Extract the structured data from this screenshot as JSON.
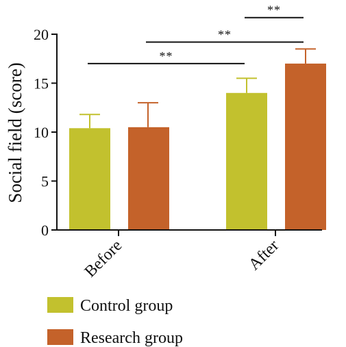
{
  "chart_data": {
    "type": "bar",
    "title": "",
    "xlabel": "",
    "ylabel": "Social field (score)",
    "ylim": [
      0,
      20
    ],
    "yticks": [
      "0",
      "5",
      "10",
      "15",
      "20"
    ],
    "categories": [
      "Before",
      "After"
    ],
    "series": [
      {
        "name": "Control group",
        "color": "#c2c12e",
        "values": [
          10.4,
          14.0
        ],
        "error": [
          1.4,
          1.5
        ]
      },
      {
        "name": "Research group",
        "color": "#c4622a",
        "values": [
          10.5,
          17.0
        ],
        "error": [
          2.5,
          1.5
        ]
      }
    ],
    "significance": [
      {
        "from_category": 0,
        "from_series": 0,
        "to_category": 1,
        "to_series": 0,
        "y": 17.0,
        "label": "**"
      },
      {
        "from_category": 0,
        "from_series": 1,
        "to_category": 1,
        "to_series": 1,
        "y": 19.2,
        "label": "**"
      },
      {
        "from_category": 1,
        "from_series": 0,
        "to_category": 1,
        "to_series": 1,
        "y": 21.7,
        "label": "**"
      }
    ],
    "grid": false,
    "legend_position": "bottom-left"
  }
}
